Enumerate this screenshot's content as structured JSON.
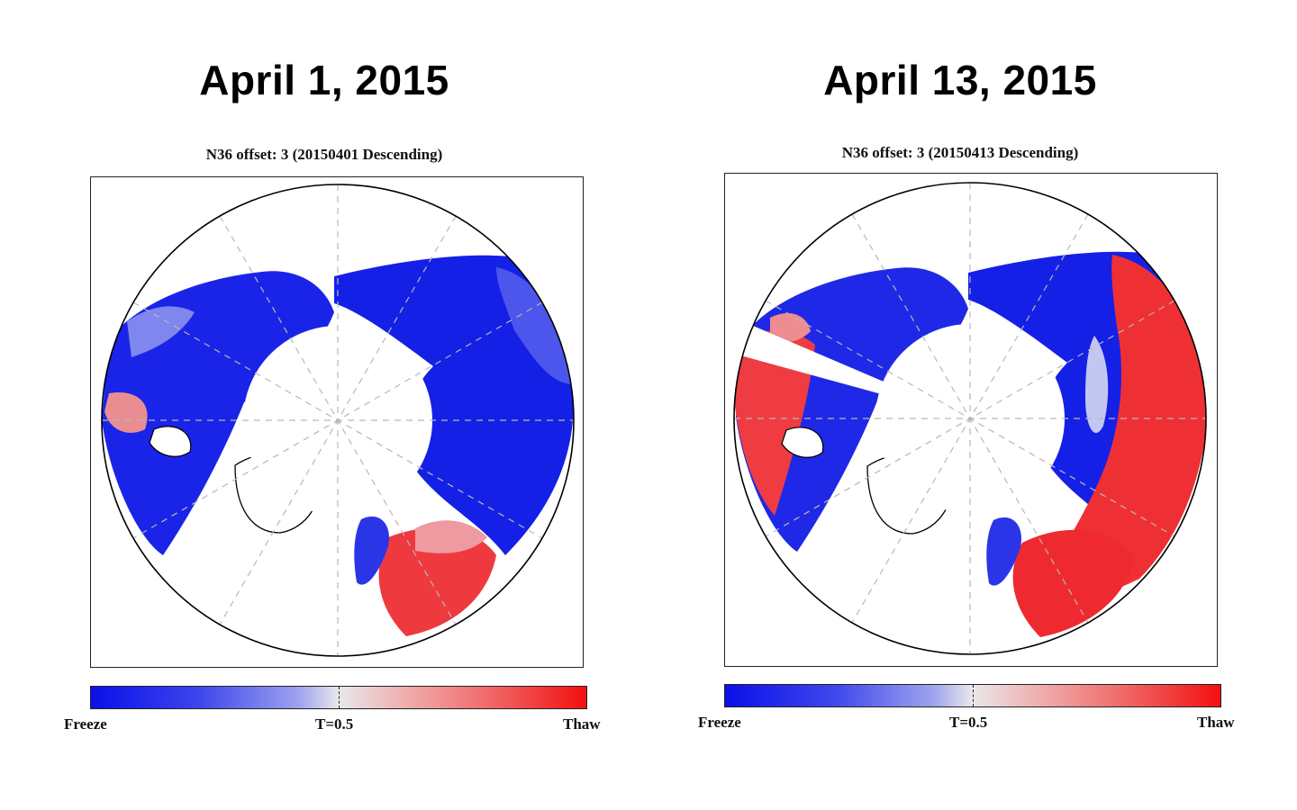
{
  "panels": [
    {
      "heading": "April 1, 2015",
      "map_title": "N36 offset: 3 (20150401 Descending)",
      "colorbar": {
        "left_label": "Freeze",
        "mid_label": "T=0.5",
        "right_label": "Thaw"
      }
    },
    {
      "heading": "April 13, 2015",
      "map_title": "N36 offset: 3 (20150413 Descending)",
      "colorbar": {
        "left_label": "Freeze",
        "mid_label": "T=0.5",
        "right_label": "Thaw"
      }
    }
  ],
  "colors": {
    "freeze": "#0a10e8",
    "neutral": "#e8e8ea",
    "thaw": "#f21010"
  },
  "colorbar_threshold": 0.5
}
